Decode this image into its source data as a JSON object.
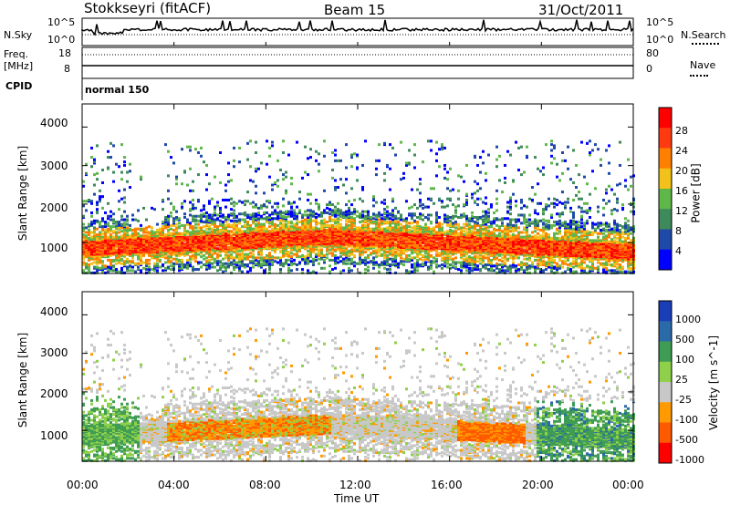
{
  "header": {
    "station": "Stokkseyri (fitACF)",
    "beam": "Beam 15",
    "date": "31/Oct/2011"
  },
  "top_panels": {
    "nsky_label": "N.Sky",
    "nsky_scale_top": "10^5",
    "nsky_scale_bottom": "10^0",
    "nsearch_label": "N.Search",
    "freq_label": "Freq.",
    "freq_unit": "[MHz]",
    "freq_ticks": [
      "18",
      "8"
    ],
    "nave_ticks": [
      "80",
      "0"
    ],
    "nave_label": "Nave",
    "cpid_label": "CPID",
    "cpid_value": "normal 150"
  },
  "colors": {
    "power": [
      "#0000ff",
      "#1f4aa8",
      "#3f8a5a",
      "#5fb74a",
      "#f2c21a",
      "#ff8000",
      "#ff3a10",
      "#ff0000"
    ],
    "velocity": [
      "#ff0000",
      "#ff5a00",
      "#ff9a00",
      "#c8c8c8",
      "#8fd04a",
      "#3e9c54",
      "#2b6aa8",
      "#1a3db8"
    ],
    "missing": "#ffffff"
  },
  "chart_data": [
    {
      "type": "heatmap",
      "panel": "power",
      "ylabel": "Slant Range [km]",
      "colorbar_label": "Power [dB]",
      "colorbar_ticks": [
        "28",
        "24",
        "20",
        "16",
        "12",
        "8",
        "4"
      ],
      "y_ticks": [
        "4000",
        "3000",
        "2000",
        "1000"
      ],
      "ylim": [
        200,
        4600
      ],
      "xlim": [
        "00:00",
        "24:00"
      ],
      "x_ticks": [
        "00:00",
        "04:00",
        "08:00",
        "12:00",
        "16:00",
        "20:00",
        "00:00"
      ],
      "xlabel": "Time UT",
      "zlim": [
        0,
        32
      ],
      "main_echo_band_km": {
        "center_start": 900,
        "center_mid": 1200,
        "center_end": 800
      },
      "strongest_power_db": 30
    },
    {
      "type": "heatmap",
      "panel": "velocity",
      "ylabel": "Slant Range [km]",
      "colorbar_label": "Velocity [m s^-1]",
      "colorbar_ticks": [
        "1000",
        "500",
        "100",
        "25",
        "-25",
        "-100",
        "-500",
        "-1000"
      ],
      "y_ticks": [
        "4000",
        "3000",
        "2000",
        "1000"
      ],
      "ylim": [
        200,
        4600
      ],
      "xlim": [
        "00:00",
        "24:00"
      ],
      "x_ticks": [
        "00:00",
        "04:00",
        "08:00",
        "12:00",
        "16:00",
        "20:00",
        "00:00"
      ],
      "xlabel": "Time UT"
    }
  ]
}
